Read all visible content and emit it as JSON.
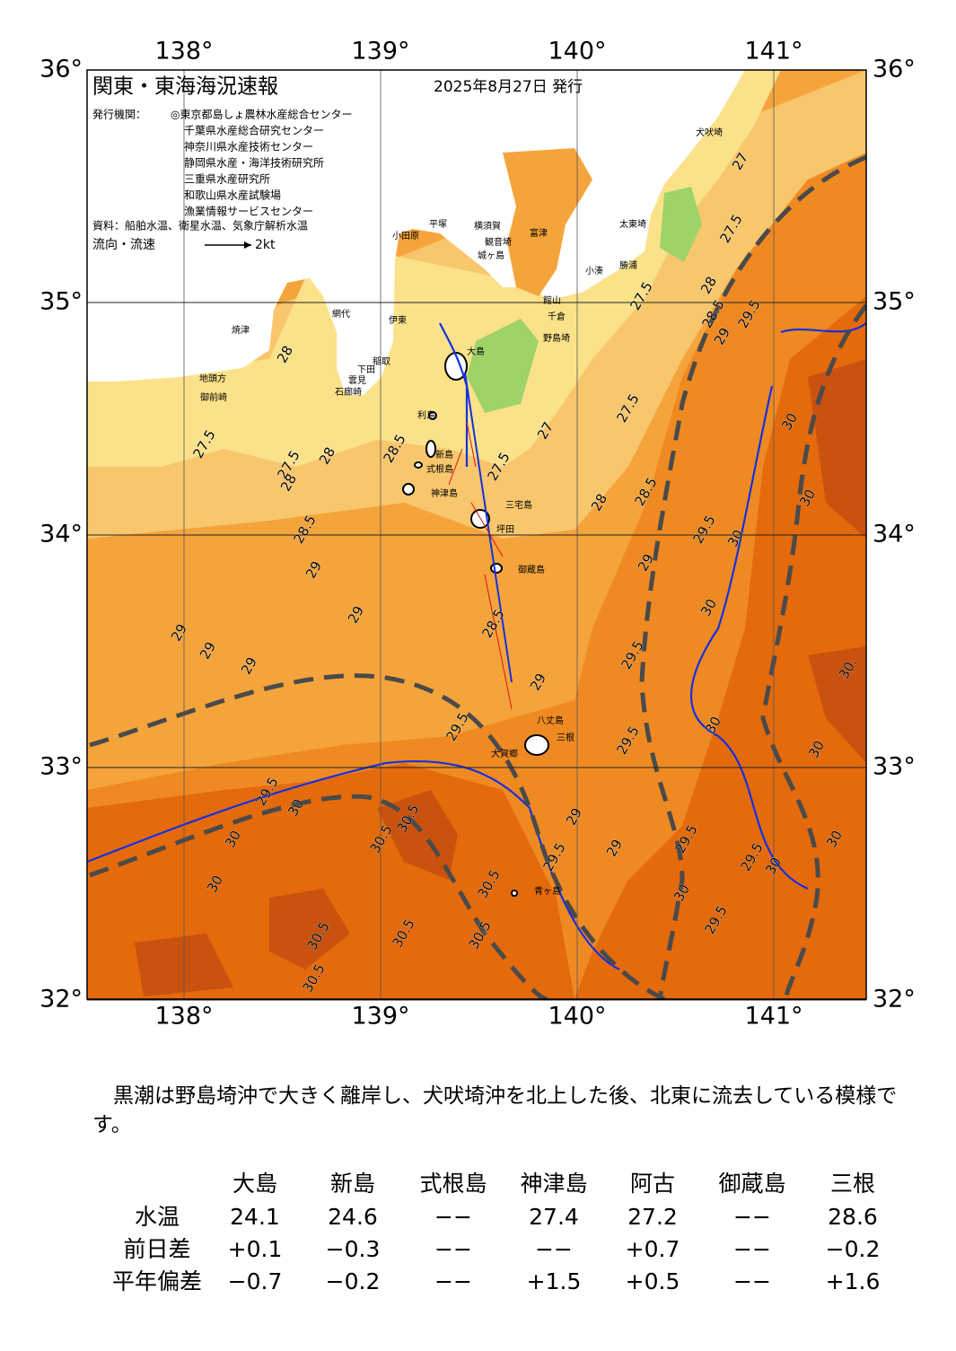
{
  "map": {
    "title": "関東・東海海況速報",
    "date": "2025年8月27日 発行",
    "issuer_label": "発行機関：",
    "issuers": [
      "◎東京都島しょ農林水産総合センター",
      "千葉県水産総合研究センター",
      "神奈川県水産技術センター",
      "静岡県水産・海洋技術研究所",
      "三重県水産研究所",
      "和歌山県水産試験場",
      "漁業情報サービスセンター"
    ],
    "sources": "資料：船舶水温、衛星水温、気象庁解析水温",
    "current_label": "流向・流速",
    "current_scale": "2kt",
    "lon_ticks": [
      {
        "value": 138,
        "label": "138°"
      },
      {
        "value": 139,
        "label": "139°"
      },
      {
        "value": 140,
        "label": "140°"
      },
      {
        "value": 141,
        "label": "141°"
      }
    ],
    "lat_ticks": [
      {
        "value": 36,
        "label": "36°"
      },
      {
        "value": 35,
        "label": "35°"
      },
      {
        "value": 34,
        "label": "34°"
      },
      {
        "value": 33,
        "label": "33°"
      },
      {
        "value": 32,
        "label": "32°"
      }
    ],
    "places": [
      "犬吠埼",
      "太東埼",
      "勝浦",
      "小湊",
      "富津",
      "観音埼",
      "横須賀",
      "平塚",
      "小田原",
      "城ヶ島",
      "館山",
      "千倉",
      "野島埼",
      "伊東",
      "網代",
      "焼津",
      "地頭方",
      "御前崎",
      "石廊崎",
      "下田",
      "稲取",
      "雲見",
      "大島",
      "利島",
      "新島",
      "式根島",
      "神津島",
      "三宅島",
      "坪田",
      "御蔵島",
      "八丈島",
      "三根",
      "大賀郷",
      "青ヶ島"
    ],
    "contour_labels": [
      "27",
      "27.5",
      "27.5",
      "28",
      "28.5",
      "29",
      "29.5",
      "27.5",
      "27",
      "27.5",
      "28",
      "28.5",
      "29.5",
      "29",
      "30",
      "30",
      "30",
      "30",
      "29.5",
      "28.5",
      "29",
      "29.5",
      "29.5",
      "30",
      "30",
      "30.",
      "29",
      "29",
      "29.5",
      "29.5",
      "29.5",
      "30",
      "30",
      "30",
      "29.5",
      "30.5",
      "30.5",
      "30",
      "30",
      "29.5",
      "30",
      "30.5",
      "30.5",
      "30.5",
      "30.5",
      "30.5",
      "29",
      "29",
      "29",
      "29",
      "29",
      "28.5",
      "28",
      "27.5",
      "28",
      "28.5",
      "27.5",
      "28"
    ]
  },
  "summary": "　黒潮は野島埼沖で大きく離岸し、犬吠埼沖を北上した後、北東に流去している模様です。",
  "table": {
    "header": [
      "大島",
      "新島",
      "式根島",
      "神津島",
      "阿古",
      "御蔵島",
      "三根"
    ],
    "rows": [
      [
        "水温",
        "24.1",
        "24.6",
        "−−",
        "27.4",
        "27.2",
        "−−",
        "28.6"
      ],
      [
        "前日差",
        "+0.1",
        "−0.3",
        "−−",
        "−−",
        "+0.7",
        "−−",
        "−0.2"
      ],
      [
        "平年偏差",
        "−0.7",
        "−0.2",
        "−−",
        "+1.5",
        "+0.5",
        "−−",
        "+1.6"
      ]
    ]
  }
}
